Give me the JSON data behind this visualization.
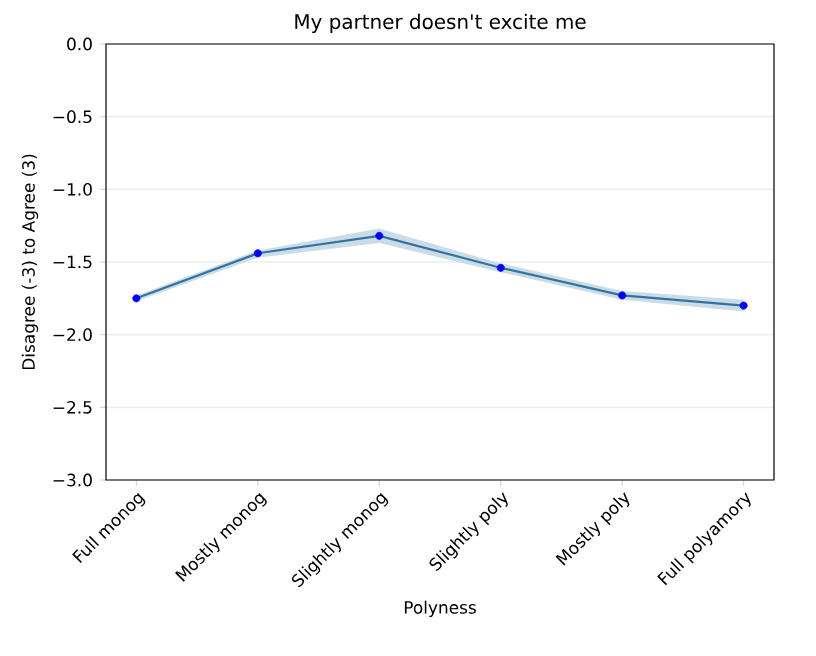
{
  "chart_data": {
    "type": "line",
    "title": "My partner doesn't excite me",
    "xlabel": "Polyness",
    "ylabel": "Disagree (-3) to Agree (3)",
    "categories": [
      "Full monog",
      "Mostly monog",
      "Slightly monog",
      "Slightly poly",
      "Mostly poly",
      "Full polyamory"
    ],
    "series": [
      {
        "marker": "none",
        "color": "#3274a1",
        "values": [
          -1.75,
          -1.44,
          -1.32,
          -1.54,
          -1.73,
          -1.8
        ],
        "lower": [
          -1.77,
          -1.47,
          -1.37,
          -1.57,
          -1.76,
          -1.84
        ],
        "upper": [
          -1.73,
          -1.42,
          -1.27,
          -1.51,
          -1.7,
          -1.76
        ]
      },
      {
        "type": "scatter",
        "marker": "circle",
        "color": "#0000ff",
        "values": [
          -1.75,
          -1.44,
          -1.32,
          -1.54,
          -1.73,
          -1.8
        ]
      }
    ],
    "ylim": [
      -3.0,
      0.0
    ],
    "yticks": [
      {
        "value": -3.0,
        "label": "−3.0"
      },
      {
        "value": -2.5,
        "label": "−2.5"
      },
      {
        "value": -2.0,
        "label": "−2.0"
      },
      {
        "value": -1.5,
        "label": "−1.5"
      },
      {
        "value": -1.0,
        "label": "−1.0"
      },
      {
        "value": -0.5,
        "label": "−0.5"
      },
      {
        "value": 0.0,
        "label": "0.0"
      }
    ],
    "grid": "y"
  }
}
